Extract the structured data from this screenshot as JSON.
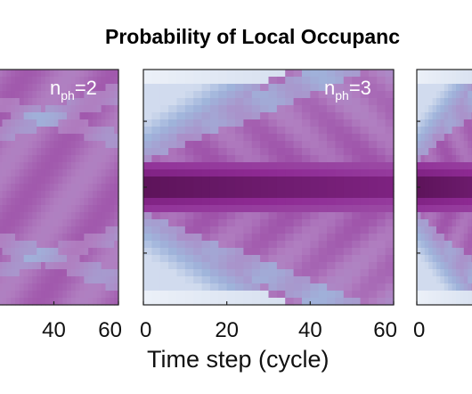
{
  "chart_data": {
    "type": "heatmap",
    "title": "Probability of Local Occupanc",
    "xlabel": "Time step (cycle)",
    "ylabel": "",
    "xlim": [
      0,
      60
    ],
    "colormap": [
      "#ffffff",
      "#9fb4db",
      "#b07ec0",
      "#8e2a94",
      "#4a0b44"
    ],
    "panels": [
      {
        "label_main": "n",
        "label_sub": "ph",
        "label_value": "=2",
        "x_ticks": [
          "40",
          "60"
        ],
        "pattern": "uniform-diamond"
      },
      {
        "label_main": "n",
        "label_sub": "ph",
        "label_value": "=3",
        "x_ticks": [
          "0",
          "20",
          "40",
          "60"
        ],
        "pattern": "center-band-cone"
      },
      {
        "label_main": "",
        "label_sub": "",
        "label_value": "",
        "x_ticks": [
          "0"
        ],
        "pattern": "center-band-cone"
      }
    ]
  }
}
